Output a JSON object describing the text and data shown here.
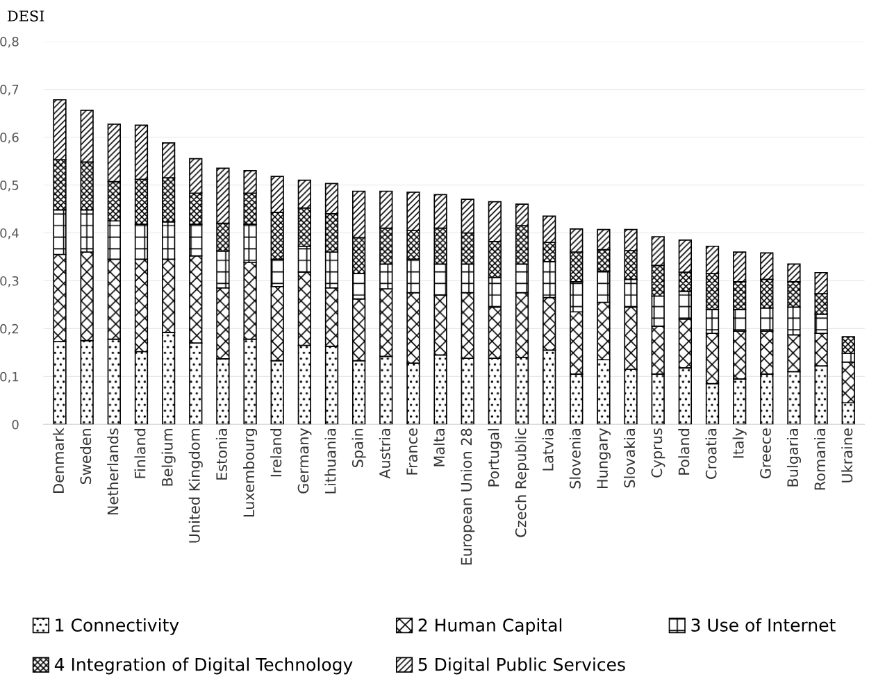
{
  "chart_data": {
    "type": "bar",
    "stacked": true,
    "ylabel": "DESI",
    "categories": [
      "Denmark",
      "Sweden",
      "Netherlands",
      "Finland",
      "Belgium",
      "United Kingdom",
      "Estonia",
      "Luxembourg",
      "Ireland",
      "Germany",
      "Lithuania",
      "Spain",
      "Austria",
      "France",
      "Malta",
      "European Union 28",
      "Portugal",
      "Czech Republic",
      "Latvia",
      "Slovenia",
      "Hungary",
      "Slovakia",
      "Cyprus",
      "Poland",
      "Croatia",
      "Italy",
      "Greece",
      "Bulgaria",
      "Romania",
      "Ukraine"
    ],
    "series": [
      {
        "name": "1 Connectivity",
        "color": "#000000",
        "values": [
          0.173,
          0.175,
          0.178,
          0.152,
          0.192,
          0.17,
          0.137,
          0.178,
          0.133,
          0.165,
          0.163,
          0.133,
          0.142,
          0.128,
          0.145,
          0.138,
          0.138,
          0.14,
          0.155,
          0.105,
          0.135,
          0.115,
          0.105,
          0.118,
          0.085,
          0.095,
          0.105,
          0.11,
          0.122,
          0.045
        ]
      },
      {
        "name": "2 Human Capital",
        "color": "#000000",
        "values": [
          0.182,
          0.185,
          0.167,
          0.193,
          0.153,
          0.182,
          0.148,
          0.16,
          0.155,
          0.153,
          0.122,
          0.129,
          0.141,
          0.147,
          0.125,
          0.137,
          0.107,
          0.135,
          0.11,
          0.13,
          0.12,
          0.13,
          0.1,
          0.102,
          0.105,
          0.1,
          0.09,
          0.077,
          0.068,
          0.085
        ]
      },
      {
        "name": "3 Use of Internet",
        "color": "#000000",
        "values": [
          0.093,
          0.088,
          0.08,
          0.073,
          0.078,
          0.066,
          0.077,
          0.08,
          0.057,
          0.054,
          0.075,
          0.053,
          0.052,
          0.07,
          0.065,
          0.06,
          0.062,
          0.06,
          0.075,
          0.063,
          0.065,
          0.058,
          0.063,
          0.058,
          0.05,
          0.045,
          0.048,
          0.058,
          0.04,
          0.018
        ]
      },
      {
        "name": "4 Integration of Digital Technology",
        "color": "#000000",
        "values": [
          0.105,
          0.1,
          0.082,
          0.094,
          0.092,
          0.065,
          0.058,
          0.065,
          0.098,
          0.08,
          0.08,
          0.075,
          0.075,
          0.06,
          0.075,
          0.065,
          0.075,
          0.08,
          0.04,
          0.062,
          0.045,
          0.06,
          0.064,
          0.04,
          0.075,
          0.058,
          0.06,
          0.053,
          0.043,
          0.035
        ]
      },
      {
        "name": "5 Digital Public Services",
        "color": "#000000",
        "values": [
          0.125,
          0.108,
          0.12,
          0.113,
          0.073,
          0.072,
          0.115,
          0.047,
          0.075,
          0.058,
          0.063,
          0.097,
          0.077,
          0.08,
          0.07,
          0.07,
          0.083,
          0.045,
          0.055,
          0.048,
          0.042,
          0.044,
          0.06,
          0.067,
          0.057,
          0.062,
          0.055,
          0.037,
          0.044,
          null
        ]
      }
    ],
    "ylim": [
      0,
      0.8
    ],
    "yticks": [
      0,
      {
        "value": 0.1,
        "label": "0,1"
      },
      {
        "value": 0.2,
        "label": "0,2"
      },
      {
        "value": 0.3,
        "label": "0,3"
      },
      {
        "value": 0.4,
        "label": "0,4"
      },
      {
        "value": 0.5,
        "label": "0,5"
      },
      {
        "value": 0.6,
        "label": "0,6"
      },
      {
        "value": 0.7,
        "label": "0,7"
      },
      {
        "value": 0.8,
        "label": "0,8"
      }
    ],
    "grid": "y",
    "legend": "bottom"
  }
}
